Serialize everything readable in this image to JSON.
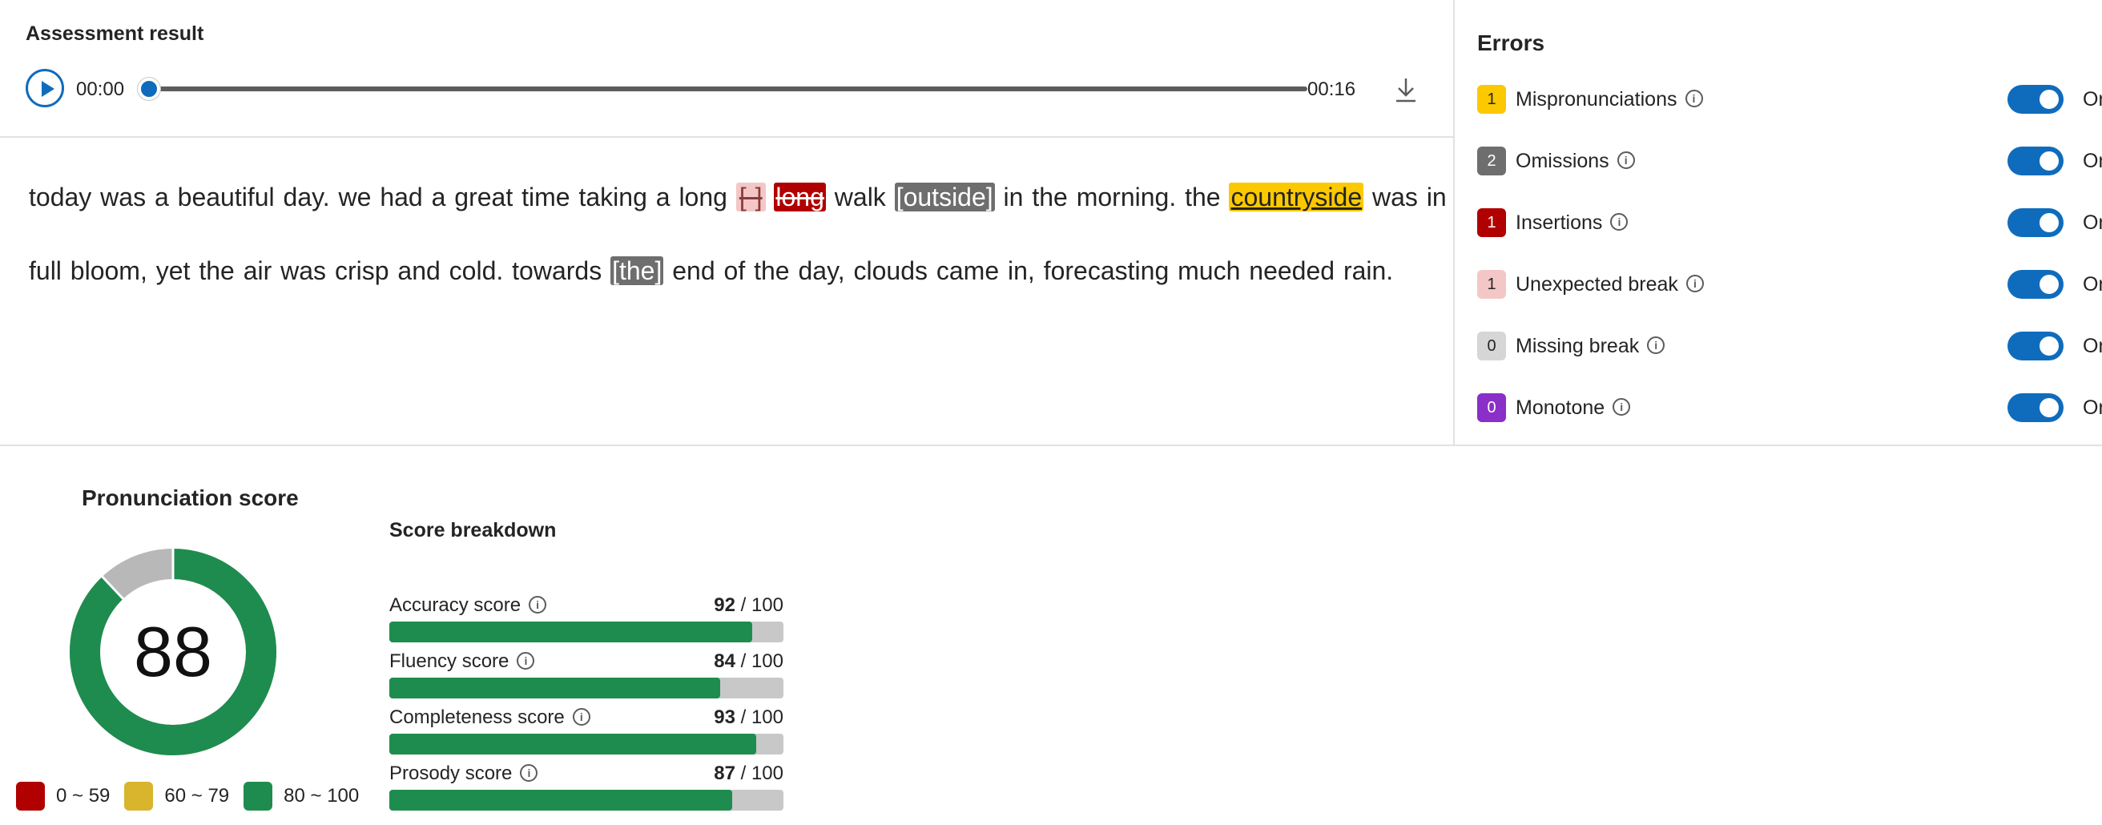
{
  "assessment": {
    "title": "Assessment result",
    "player": {
      "current_time": "00:00",
      "total_time": "00:16",
      "progress": 0
    },
    "transcript": {
      "line1": [
        {
          "text": "today was a beautiful day. we had a great time taking a long ",
          "type": "normal"
        },
        {
          "text": "[ ]",
          "type": "unexpected_break"
        },
        {
          "text": " ",
          "type": "normal"
        },
        {
          "text": "long",
          "type": "insertion"
        },
        {
          "text": " walk ",
          "type": "normal"
        },
        {
          "text": "[outside]",
          "type": "omission"
        },
        {
          "text": " in the morning. the ",
          "type": "normal"
        },
        {
          "text": "countryside",
          "type": "mispronunciation"
        },
        {
          "text": " was in",
          "type": "normal"
        }
      ],
      "line2": [
        {
          "text": "full bloom, yet the air was crisp and cold. towards ",
          "type": "normal"
        },
        {
          "text": "[the]",
          "type": "omission"
        },
        {
          "text": " end of the day, clouds came in, forecasting much needed rain.",
          "type": "normal"
        }
      ]
    }
  },
  "errors": {
    "title": "Errors",
    "items": [
      {
        "label": "Mispronunciations",
        "count": "1",
        "color": "#fcc800",
        "text_color": "#242424",
        "toggle": "On"
      },
      {
        "label": "Omissions",
        "count": "2",
        "color": "#6e6e6e",
        "text_color": "#ffffff",
        "toggle": "On"
      },
      {
        "label": "Insertions",
        "count": "1",
        "color": "#b00000",
        "text_color": "#ffffff",
        "toggle": "On"
      },
      {
        "label": "Unexpected break",
        "count": "1",
        "color": "#f4c7c7",
        "text_color": "#242424",
        "toggle": "On"
      },
      {
        "label": "Missing break",
        "count": "0",
        "color": "#d6d6d6",
        "text_color": "#242424",
        "toggle": "On"
      },
      {
        "label": "Monotone",
        "count": "0",
        "color": "#8a2fc8",
        "text_color": "#ffffff",
        "toggle": "On"
      }
    ]
  },
  "score": {
    "title": "Pronunciation score",
    "value": "88",
    "value_num": 88,
    "ring_color": "#1e8c4e",
    "ring_bg": "#b8b8b8",
    "legend": [
      {
        "label": "0 ~ 59",
        "color": "#b00000"
      },
      {
        "label": "60 ~ 79",
        "color": "#d8b52c"
      },
      {
        "label": "80 ~ 100",
        "color": "#1e8c4e"
      }
    ]
  },
  "breakdown": {
    "title": "Score breakdown",
    "metrics": [
      {
        "label": "Accuracy score",
        "score": "92",
        "max": " / 100",
        "value": 92
      },
      {
        "label": "Fluency score",
        "score": "84",
        "max": " / 100",
        "value": 84
      },
      {
        "label": "Completeness score",
        "score": "93",
        "max": " / 100",
        "value": 93
      },
      {
        "label": "Prosody score",
        "score": "87",
        "max": " / 100",
        "value": 87
      }
    ]
  }
}
